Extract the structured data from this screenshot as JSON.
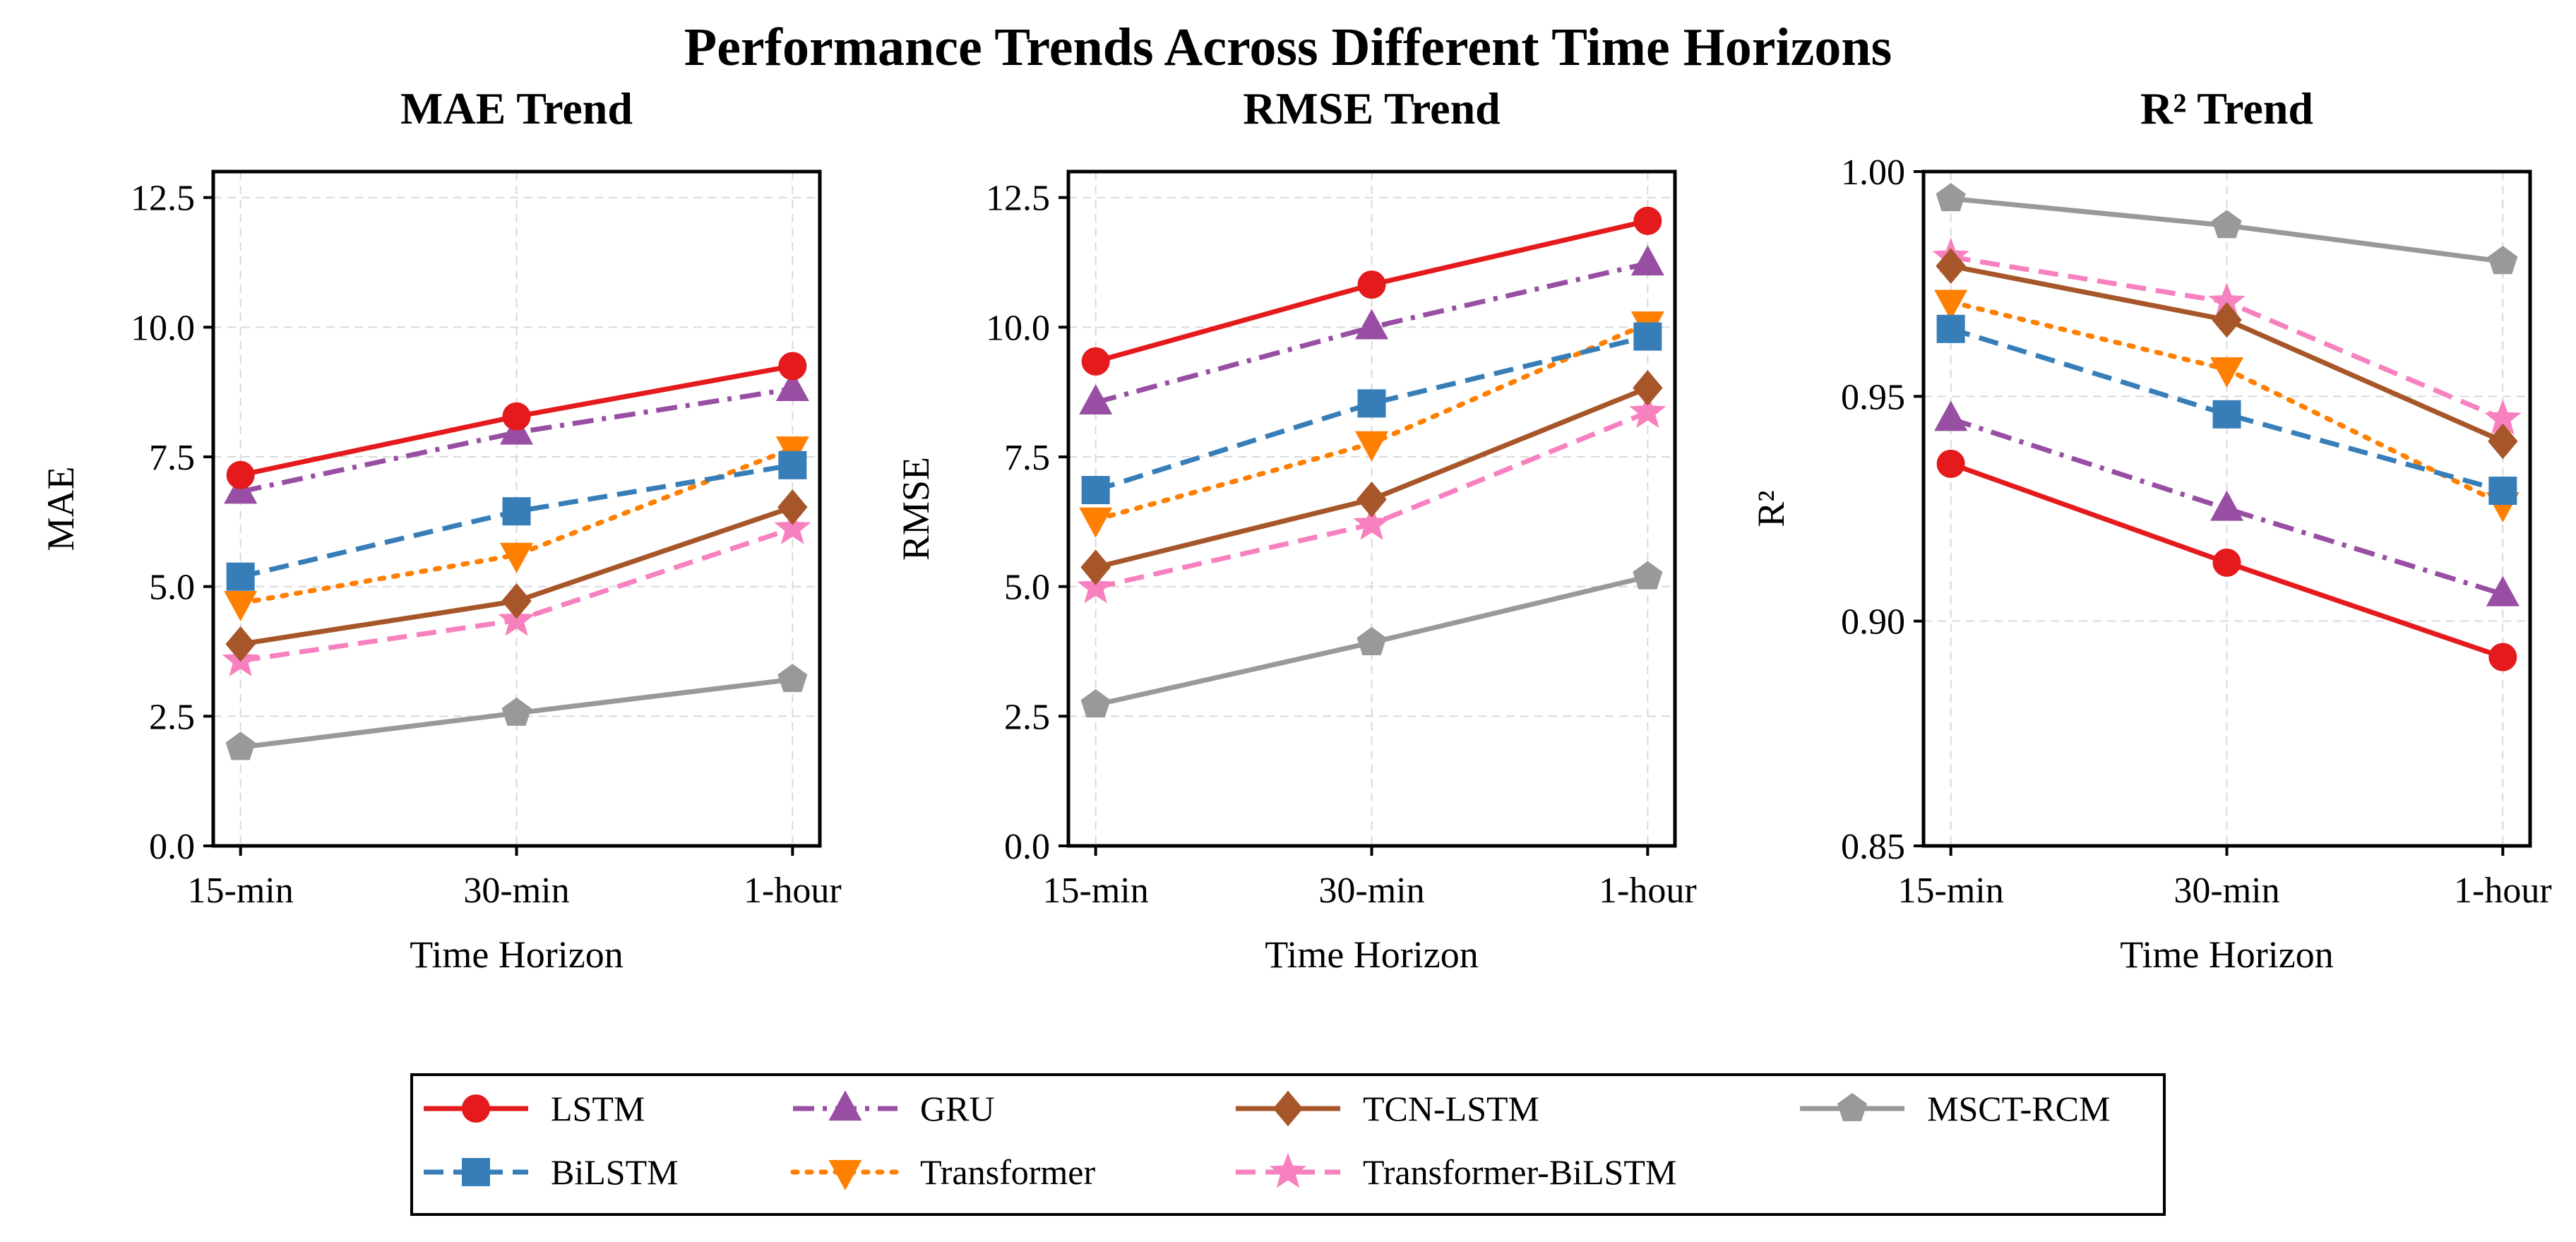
{
  "figure": {
    "title": "Performance Trends Across Different Time Horizons"
  },
  "chart_data": [
    {
      "type": "line",
      "title": "MAE Trend",
      "xlabel": "Time Horizon",
      "ylabel": "MAE",
      "categories": [
        "15-min",
        "30-min",
        "1-hour"
      ],
      "ylim": [
        0,
        13
      ],
      "yticks": [
        "0.0",
        "2.5",
        "5.0",
        "7.5",
        "10.0",
        "12.5"
      ],
      "grid": true,
      "series": [
        {
          "name": "LSTM",
          "values": [
            7.15,
            8.28,
            9.25
          ]
        },
        {
          "name": "GRU",
          "values": [
            6.83,
            7.97,
            8.81
          ]
        },
        {
          "name": "BiLSTM",
          "values": [
            5.19,
            6.45,
            7.34
          ]
        },
        {
          "name": "Transformer",
          "values": [
            4.68,
            5.61,
            7.66
          ]
        },
        {
          "name": "TCN-LSTM",
          "values": [
            3.89,
            4.72,
            6.53
          ]
        },
        {
          "name": "Transformer-BiLSTM",
          "values": [
            3.57,
            4.35,
            6.12
          ]
        },
        {
          "name": "MSCT-RCM",
          "values": [
            1.9,
            2.56,
            3.21
          ]
        }
      ]
    },
    {
      "type": "line",
      "title": "RMSE Trend",
      "xlabel": "Time Horizon",
      "ylabel": "RMSE",
      "categories": [
        "15-min",
        "30-min",
        "1-hour"
      ],
      "ylim": [
        0,
        13
      ],
      "yticks": [
        "0.0",
        "2.5",
        "5.0",
        "7.5",
        "10.0",
        "12.5"
      ],
      "grid": true,
      "series": [
        {
          "name": "LSTM",
          "values": [
            9.34,
            10.82,
            12.05
          ]
        },
        {
          "name": "GRU",
          "values": [
            8.55,
            10.0,
            11.23
          ]
        },
        {
          "name": "BiLSTM",
          "values": [
            6.86,
            8.53,
            9.82
          ]
        },
        {
          "name": "Transformer",
          "values": [
            6.29,
            7.76,
            10.07
          ]
        },
        {
          "name": "TCN-LSTM",
          "values": [
            5.37,
            6.68,
            8.83
          ]
        },
        {
          "name": "Transformer-BiLSTM",
          "values": [
            4.98,
            6.2,
            8.36
          ]
        },
        {
          "name": "MSCT-RCM",
          "values": [
            2.72,
            3.92,
            5.19
          ]
        }
      ]
    },
    {
      "type": "line",
      "title": "R² Trend",
      "xlabel": "Time Horizon",
      "ylabel": "R²",
      "categories": [
        "15-min",
        "30-min",
        "1-hour"
      ],
      "ylim": [
        0.85,
        1.0
      ],
      "yticks": [
        "0.85",
        "0.90",
        "0.95",
        "1.00"
      ],
      "grid": true,
      "series": [
        {
          "name": "LSTM",
          "values": [
            0.935,
            0.913,
            0.892
          ]
        },
        {
          "name": "GRU",
          "values": [
            0.945,
            0.925,
            0.906
          ]
        },
        {
          "name": "BiLSTM",
          "values": [
            0.965,
            0.946,
            0.929
          ]
        },
        {
          "name": "Transformer",
          "values": [
            0.971,
            0.956,
            0.926
          ]
        },
        {
          "name": "TCN-LSTM",
          "values": [
            0.979,
            0.967,
            0.94
          ]
        },
        {
          "name": "Transformer-BiLSTM",
          "values": [
            0.981,
            0.971,
            0.945
          ]
        },
        {
          "name": "MSCT-RCM",
          "values": [
            0.994,
            0.988,
            0.98
          ]
        }
      ]
    }
  ],
  "legend": {
    "placement": "bottom-center",
    "entries": [
      {
        "name": "LSTM",
        "color": "#e41a1c",
        "marker": "circle",
        "dash": "solid"
      },
      {
        "name": "GRU",
        "color": "#984ea3",
        "marker": "triangle-up",
        "dash": "dashdot"
      },
      {
        "name": "TCN-LSTM",
        "color": "#a65628",
        "marker": "diamond",
        "dash": "solid"
      },
      {
        "name": "MSCT-RCM",
        "color": "#999999",
        "marker": "pentagon",
        "dash": "solid"
      },
      {
        "name": "BiLSTM",
        "color": "#377eb8",
        "marker": "square",
        "dash": "dashed"
      },
      {
        "name": "Transformer",
        "color": "#ff7f00",
        "marker": "triangle-down",
        "dash": "dotted"
      },
      {
        "name": "Transformer-BiLSTM",
        "color": "#f781bf",
        "marker": "star",
        "dash": "dashed"
      }
    ]
  }
}
